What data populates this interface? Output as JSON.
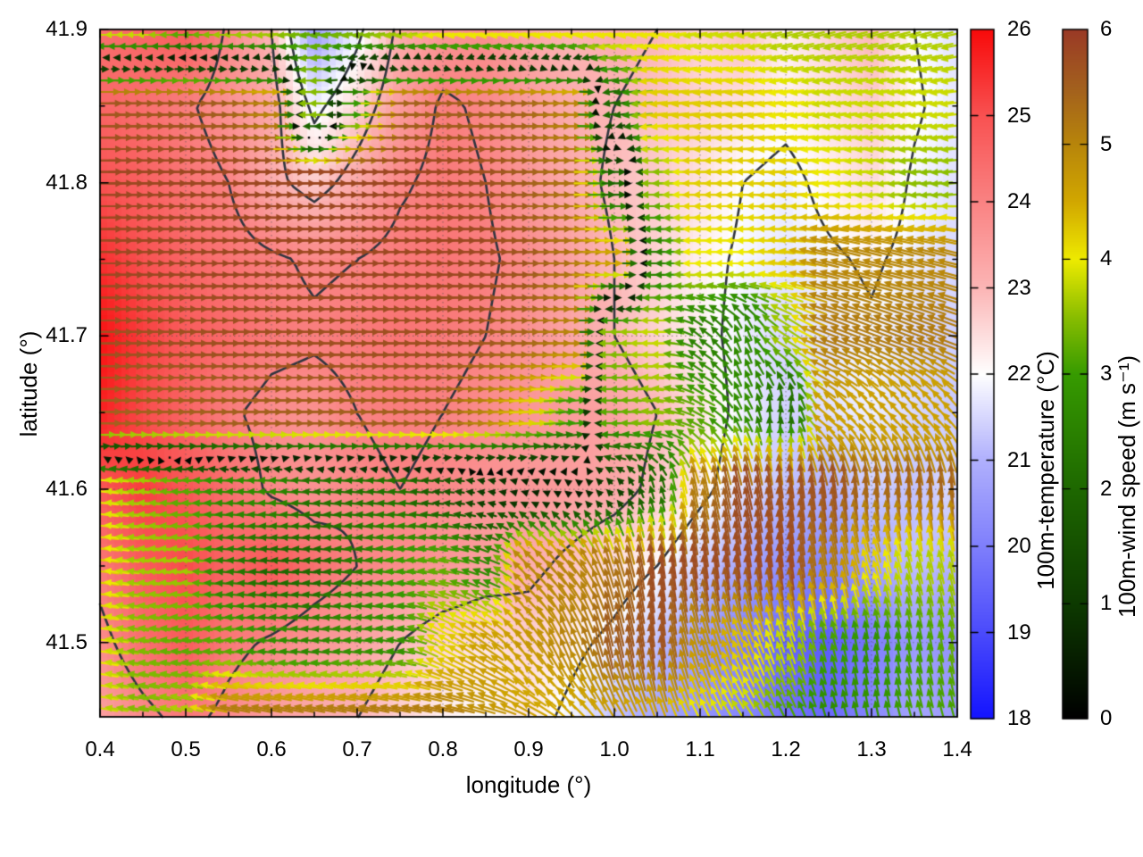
{
  "chart_data": {
    "type": "heatmap",
    "overlays": [
      "contour-lines",
      "vector-field"
    ],
    "title": "",
    "xlabel": "longitude (°)",
    "ylabel": "latitude (°)",
    "xlim": [
      0.4,
      1.4
    ],
    "ylim": [
      41.4515,
      41.9
    ],
    "grid": "dotted-at-major-ticks",
    "x_ticks": {
      "major": [
        0.4,
        0.5,
        0.6,
        0.7,
        0.8,
        0.9,
        1.0,
        1.1,
        1.2,
        1.3,
        1.4
      ],
      "labels": [
        "0.4",
        "0.5",
        "0.6",
        "0.7",
        "0.8",
        "0.9",
        "1.0",
        "1.1",
        "1.2",
        "1.3",
        "1.4"
      ],
      "minor": [
        0.45,
        0.55,
        0.65,
        0.75,
        0.85,
        0.95,
        1.05,
        1.15,
        1.25,
        1.35
      ]
    },
    "y_ticks": {
      "major": [
        41.5,
        41.6,
        41.7,
        41.8,
        41.9
      ],
      "labels": [
        "41.5",
        "41.6",
        "41.7",
        "41.8",
        "41.9"
      ],
      "minor": [
        41.55,
        41.65,
        41.75,
        41.85
      ]
    },
    "contour_levels": [
      22,
      23,
      24
    ],
    "temperature": {
      "label": "100m-temperature (°C)",
      "units": "°C",
      "range": [
        18,
        26
      ],
      "cb_ticks": [
        18,
        19,
        20,
        21,
        22,
        23,
        24,
        25,
        26
      ],
      "cb_tick_labels": [
        "18",
        "19",
        "20",
        "21",
        "22",
        "23",
        "24",
        "25",
        "26"
      ],
      "colormap": [
        [
          18,
          "#1414ff"
        ],
        [
          19,
          "#4b4bfb"
        ],
        [
          20,
          "#7f7ffc"
        ],
        [
          21,
          "#b0b0fd"
        ],
        [
          22,
          "#ffffff"
        ],
        [
          23,
          "#fcb6b6"
        ],
        [
          24,
          "#fa8383"
        ],
        [
          25,
          "#f95252"
        ],
        [
          26,
          "#f80b0b"
        ]
      ],
      "lon": [
        0.4,
        0.45,
        0.5,
        0.55,
        0.6,
        0.65,
        0.7,
        0.75,
        0.8,
        0.85,
        0.9,
        0.95,
        1.0,
        1.05,
        1.1,
        1.15,
        1.2,
        1.25,
        1.3,
        1.35,
        1.4
      ],
      "lat": [
        41.9,
        41.85,
        41.8,
        41.75,
        41.7,
        41.65,
        41.6,
        41.55,
        41.5,
        41.45
      ],
      "values": [
        [
          24.4,
          24.6,
          24.8,
          23.9,
          23.0,
          20.6,
          21.8,
          23.2,
          23.6,
          23.8,
          23.3,
          23.0,
          23.2,
          23.0,
          22.6,
          22.9,
          22.2,
          22.6,
          23.0,
          22.0,
          21.6
        ],
        [
          24.6,
          24.4,
          24.1,
          23.7,
          23.3,
          21.8,
          22.6,
          23.5,
          24.1,
          23.9,
          23.5,
          23.2,
          23.0,
          22.8,
          22.6,
          22.4,
          22.2,
          22.4,
          22.7,
          22.1,
          21.7
        ],
        [
          25.0,
          24.7,
          24.3,
          24.0,
          23.2,
          22.7,
          23.3,
          23.9,
          24.2,
          24.0,
          23.6,
          23.2,
          22.9,
          22.7,
          22.4,
          22.0,
          21.8,
          22.2,
          22.5,
          21.9,
          21.6
        ],
        [
          25.5,
          25.0,
          24.6,
          24.3,
          24.1,
          23.9,
          24.0,
          24.2,
          24.3,
          24.1,
          23.8,
          23.4,
          23.0,
          22.6,
          22.2,
          21.9,
          21.7,
          21.9,
          22.1,
          21.8,
          21.5
        ],
        [
          25.9,
          25.3,
          24.8,
          24.5,
          24.2,
          24.1,
          24.2,
          24.3,
          24.2,
          24.0,
          23.7,
          23.3,
          23.0,
          22.6,
          22.2,
          21.8,
          21.5,
          21.7,
          21.9,
          21.6,
          21.4
        ],
        [
          25.7,
          25.1,
          24.6,
          24.1,
          23.8,
          23.7,
          24.0,
          24.1,
          24.0,
          23.8,
          23.6,
          23.5,
          23.4,
          23.0,
          22.4,
          21.8,
          21.4,
          21.6,
          21.8,
          21.5,
          21.3
        ],
        [
          24.9,
          25.3,
          24.9,
          24.4,
          23.9,
          23.7,
          23.9,
          24.0,
          23.9,
          23.7,
          23.6,
          23.5,
          23.3,
          22.8,
          22.2,
          21.6,
          21.2,
          21.0,
          21.4,
          21.2,
          21.6
        ],
        [
          24.2,
          24.8,
          25.1,
          24.6,
          24.9,
          24.4,
          24.0,
          23.8,
          23.6,
          23.4,
          23.2,
          22.8,
          22.4,
          22.0,
          21.4,
          20.8,
          20.3,
          20.1,
          20.7,
          21.2,
          21.0
        ],
        [
          23.8,
          24.4,
          24.8,
          24.2,
          23.9,
          23.6,
          23.4,
          23.0,
          22.6,
          22.4,
          22.6,
          22.2,
          21.8,
          21.2,
          20.6,
          20.0,
          19.5,
          19.3,
          19.9,
          20.6,
          20.4
        ],
        [
          23.4,
          23.8,
          24.2,
          23.8,
          23.4,
          23.2,
          23.0,
          22.6,
          22.2,
          22.0,
          22.3,
          21.8,
          21.2,
          20.8,
          20.4,
          20.2,
          19.8,
          19.6,
          20.2,
          20.8,
          20.6
        ]
      ]
    },
    "wind": {
      "label": "100m-wind speed (m s⁻¹)",
      "units": "m s⁻¹",
      "range": [
        0,
        6
      ],
      "cb_ticks": [
        0,
        1,
        2,
        3,
        4,
        5,
        6
      ],
      "cb_tick_labels": [
        "0",
        "1",
        "2",
        "3",
        "4",
        "5",
        "6"
      ],
      "colormap": [
        [
          0,
          "#000000"
        ],
        [
          1,
          "#0d3a00"
        ],
        [
          2,
          "#1e6800"
        ],
        [
          3,
          "#379b00"
        ],
        [
          3.5,
          "#8abe00"
        ],
        [
          4,
          "#eeeb00"
        ],
        [
          4.5,
          "#d2a800"
        ],
        [
          5,
          "#b8860b"
        ],
        [
          5.5,
          "#a3601e"
        ],
        [
          6,
          "#9a3a26"
        ]
      ],
      "lon": [
        0.4,
        0.45,
        0.5,
        0.55,
        0.6,
        0.65,
        0.7,
        0.75,
        0.8,
        0.85,
        0.9,
        0.95,
        1.0,
        1.05,
        1.1,
        1.15,
        1.2,
        1.25,
        1.3,
        1.35,
        1.4
      ],
      "lat": [
        41.9,
        41.85,
        41.8,
        41.75,
        41.7,
        41.65,
        41.6,
        41.55,
        41.5,
        41.45
      ],
      "u": [
        [
          -3.8,
          -3.8,
          -3.2,
          -3.6,
          -3.6,
          -3.2,
          -3.4,
          -3.6,
          -4.0,
          -4.0,
          -4.0,
          -4.0,
          -4.0,
          -4.0,
          -3.8,
          -3.8,
          -3.6,
          -3.6,
          -3.6,
          -3.6,
          -3.6
        ],
        [
          5.6,
          5.6,
          5.6,
          5.5,
          5.0,
          -3.5,
          3.0,
          5.4,
          5.5,
          5.5,
          5.4,
          5.0,
          -2.0,
          -4.2,
          -4.2,
          -4.2,
          -4.0,
          -3.8,
          -3.8,
          -3.8,
          -3.8
        ],
        [
          5.8,
          5.8,
          5.8,
          5.8,
          5.8,
          5.8,
          5.8,
          5.8,
          5.8,
          5.7,
          5.5,
          5.2,
          2.0,
          -3.5,
          -4.2,
          -4.2,
          -4.2,
          -4.0,
          -3.8,
          -3.5,
          -3.5
        ],
        [
          5.8,
          5.8,
          5.8,
          5.8,
          5.8,
          5.8,
          5.8,
          5.8,
          5.8,
          5.8,
          5.6,
          5.2,
          4.5,
          -2.5,
          -4.0,
          -4.0,
          -4.2,
          -4.8,
          -4.8,
          -4.8,
          -4.8
        ],
        [
          5.7,
          5.7,
          5.7,
          5.7,
          5.7,
          5.7,
          5.7,
          5.7,
          5.7,
          5.6,
          5.4,
          5.0,
          -3.5,
          -3.8,
          -2.0,
          -1.0,
          -3.0,
          -4.8,
          -4.8,
          -4.8,
          -4.8
        ],
        [
          5.5,
          5.5,
          5.5,
          5.5,
          5.5,
          5.5,
          5.5,
          5.5,
          5.5,
          5.0,
          4.2,
          3.0,
          -3.2,
          -3.5,
          -2.8,
          -1.2,
          0.3,
          -3.5,
          -3.0,
          -3.0,
          -3.0
        ],
        [
          -4.0,
          -3.6,
          -3.2,
          -2.7,
          -2.7,
          -2.2,
          -2.2,
          -2.2,
          -1.6,
          -1.0,
          -0.6,
          -0.4,
          -0.8,
          -0.6,
          -1.0,
          -1.2,
          -0.8,
          -0.8,
          -0.5,
          -0.5,
          -0.5
        ],
        [
          -4.2,
          -3.6,
          -3.6,
          -2.4,
          -2.0,
          -2.0,
          -2.4,
          -3.0,
          -3.2,
          -2.5,
          -3.5,
          -3.0,
          -1.5,
          -0.8,
          -0.8,
          -0.8,
          -0.8,
          -1.0,
          -1.2,
          -0.8,
          -0.8
        ],
        [
          -4.0,
          -3.4,
          -3.2,
          -3.2,
          -2.8,
          -2.6,
          -2.8,
          -2.8,
          -3.6,
          -3.8,
          -2.8,
          -2.0,
          -1.2,
          -0.8,
          -1.4,
          -1.6,
          -1.2,
          -0.8,
          -0.5,
          -0.6,
          -0.6
        ],
        [
          -3.8,
          -3.4,
          -3.6,
          -5.0,
          -5.0,
          -5.0,
          -5.0,
          -5.0,
          -5.0,
          -4.6,
          -4.0,
          -3.2,
          -2.4,
          -1.6,
          -1.8,
          -2.0,
          -1.4,
          -0.8,
          -0.6,
          -0.8,
          -0.8
        ]
      ],
      "v": [
        [
          0,
          0,
          0,
          0,
          -0.3,
          -0.5,
          -0.5,
          -0.5,
          -0.5,
          -0.5,
          -0.5,
          -0.5,
          -0.5,
          -0.5,
          -0.6,
          -0.6,
          -0.8,
          -0.8,
          -0.8,
          -0.8,
          -0.8
        ],
        [
          0,
          0,
          0,
          0,
          0,
          0,
          0,
          0,
          0,
          0,
          0,
          0,
          -0.3,
          -0.4,
          -0.4,
          -0.4,
          -0.5,
          -0.5,
          -0.5,
          -0.5,
          -0.5
        ],
        [
          0,
          0,
          0,
          0,
          0,
          0,
          0,
          0,
          0,
          0,
          0,
          0,
          0,
          0,
          0,
          0,
          -0.3,
          -0.3,
          -0.3,
          -0.3,
          -0.3
        ],
        [
          0,
          0,
          0,
          0,
          0,
          0,
          0,
          0,
          0,
          0,
          0,
          0,
          0,
          0,
          0,
          0,
          0.5,
          1.2,
          1.2,
          1.2,
          1.2
        ],
        [
          0,
          0,
          0,
          0,
          0,
          0,
          0,
          0,
          0,
          0,
          0,
          0,
          0,
          0,
          1.5,
          2.5,
          2.0,
          1.8,
          1.8,
          1.8,
          1.8
        ],
        [
          0,
          0,
          0,
          0,
          0,
          0,
          0,
          0,
          0,
          0,
          0.2,
          0.3,
          0,
          0.5,
          1.5,
          2.5,
          2.2,
          3.0,
          3.5,
          3.5,
          3.5
        ],
        [
          0.4,
          0.3,
          0.2,
          0.2,
          0.2,
          0.2,
          0.2,
          0.2,
          0.2,
          0.2,
          0.2,
          0.3,
          0.8,
          2.0,
          5.0,
          5.6,
          5.6,
          5.6,
          5.4,
          5.4,
          5.4
        ],
        [
          0.5,
          0.4,
          0.3,
          0.2,
          0.2,
          0.2,
          0.3,
          0.4,
          0.6,
          1.0,
          3.5,
          4.0,
          5.0,
          5.7,
          5.7,
          5.7,
          5.7,
          5.0,
          4.0,
          3.6,
          3.6
        ],
        [
          0.6,
          0.5,
          0.4,
          0.3,
          0.3,
          0.3,
          0.3,
          0.5,
          2.0,
          2.6,
          3.8,
          4.6,
          5.4,
          5.6,
          4.6,
          4.0,
          3.6,
          3.0,
          2.8,
          3.0,
          3.2
        ],
        [
          0.6,
          0.6,
          0.8,
          1.0,
          1.0,
          1.0,
          1.0,
          1.0,
          1.0,
          1.4,
          2.2,
          3.2,
          4.0,
          4.2,
          3.6,
          3.2,
          2.8,
          2.6,
          2.8,
          3.0,
          3.0
        ]
      ]
    },
    "style": {
      "background": "#ffffff",
      "axis_color": "#000000",
      "contour_color": "#30353f",
      "grid_dot_color": "rgba(80,80,80,0.55)"
    }
  }
}
